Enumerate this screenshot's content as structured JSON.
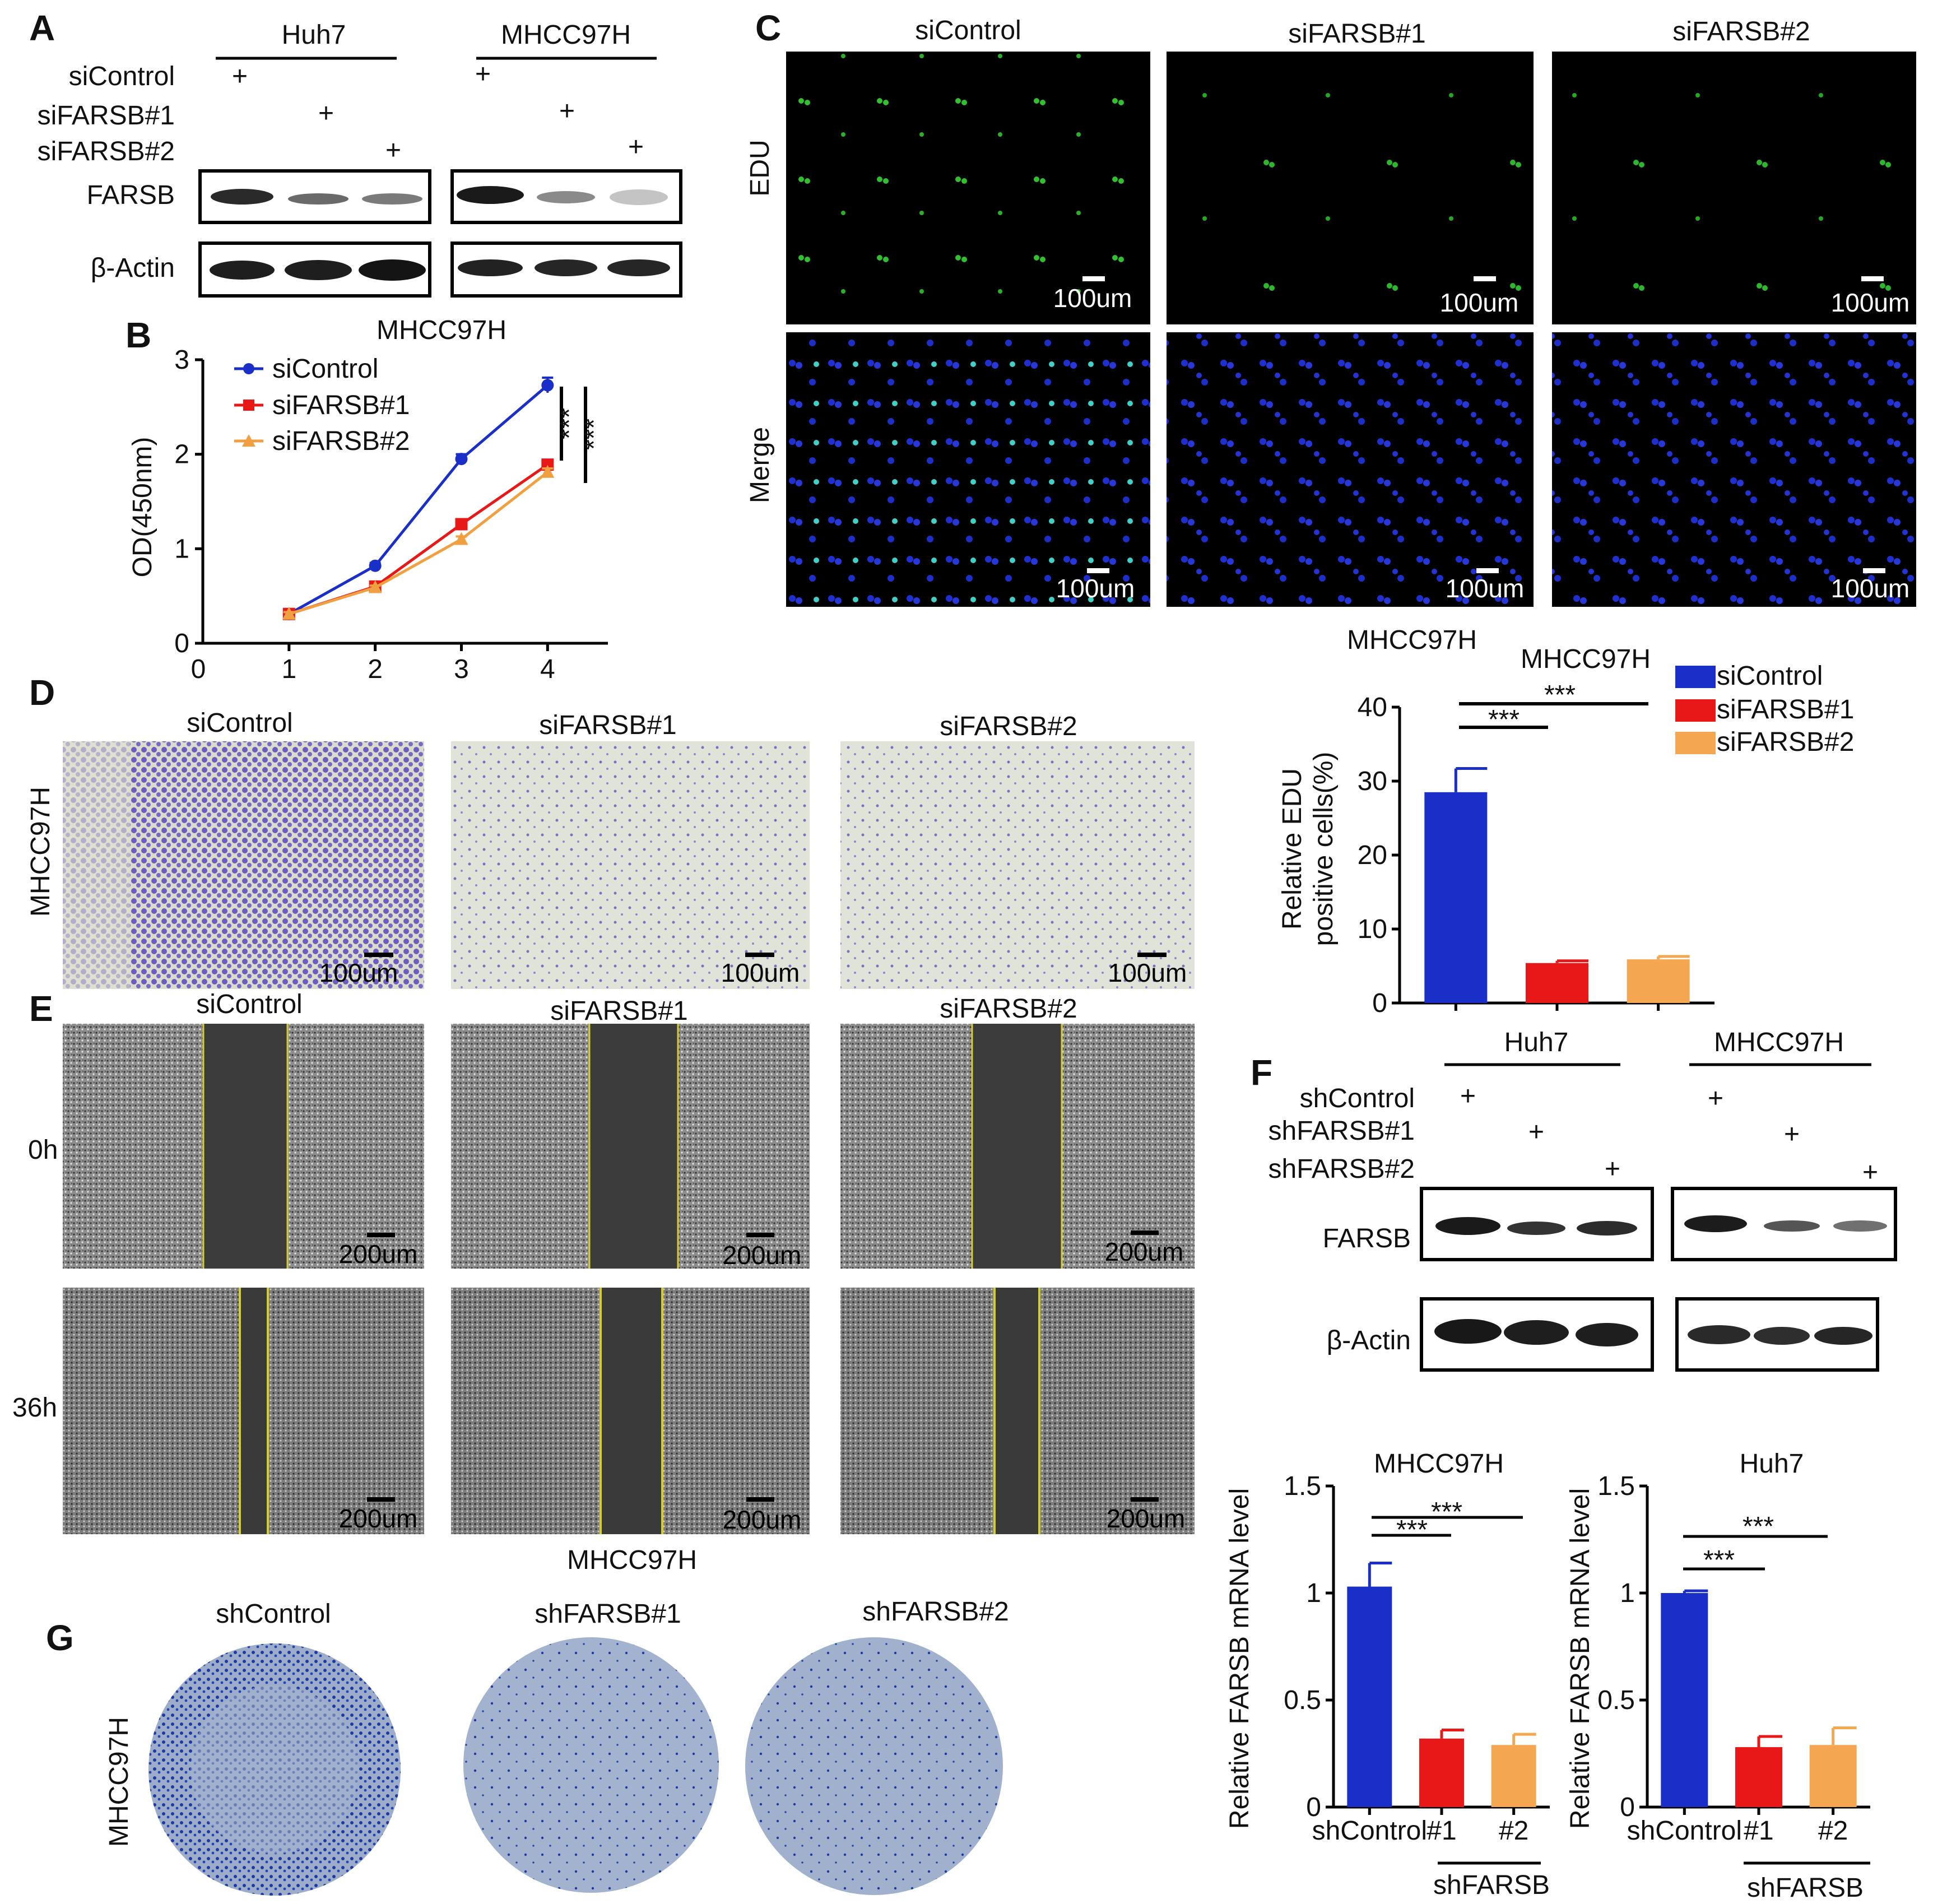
{
  "panel_letters": {
    "A": "A",
    "B": "B",
    "C": "C",
    "D": "D",
    "E": "E",
    "F": "F",
    "G": "G"
  },
  "panelA": {
    "cell_lines": [
      "Huh7",
      "MHCC97H"
    ],
    "row_labels": [
      "siControl",
      "siFARSB#1",
      "siFARSB#2"
    ],
    "plus": "+",
    "blot_labels": [
      "FARSB",
      "β-Actin"
    ]
  },
  "panelB": {
    "title": "MHCC97H",
    "stars": "***",
    "chart_data": {
      "type": "line",
      "title": "MHCC97H",
      "ylabel": "OD(450nm)",
      "x": [
        1,
        2,
        3,
        4
      ],
      "xticks": [
        "0",
        "1",
        "2",
        "3",
        "4"
      ],
      "yticks": [
        "0",
        "1",
        "2",
        "3"
      ],
      "ylim": [
        0,
        3
      ],
      "xlim": [
        0,
        4.7
      ],
      "legend": "top-left",
      "series": [
        {
          "name": "siControl",
          "values": [
            0.31,
            0.82,
            1.95,
            2.73
          ],
          "errors": [
            0.02,
            0.03,
            0.05,
            0.08
          ],
          "color": "#1a2fc8",
          "marker": "circle"
        },
        {
          "name": "siFARSB#1",
          "values": [
            0.31,
            0.6,
            1.26,
            1.89
          ],
          "errors": [
            0.02,
            0.02,
            0.04,
            0.04
          ],
          "color": "#e81818",
          "marker": "square"
        },
        {
          "name": "siFARSB#2",
          "values": [
            0.31,
            0.59,
            1.1,
            1.81
          ],
          "errors": [
            0.02,
            0.02,
            0.03,
            0.04
          ],
          "color": "#f0a040",
          "marker": "triangle"
        }
      ]
    }
  },
  "panelC": {
    "columns": [
      "siControl",
      "siFARSB#1",
      "siFARSB#2"
    ],
    "rows": [
      "EDU",
      "Merge"
    ],
    "scale": "100um"
  },
  "panelC_bar": {
    "header": "MHCC97H",
    "stars": "***",
    "chart_data": {
      "type": "bar",
      "title": "MHCC97H",
      "ylabel": "Relative EDU positive cells(%)",
      "ylabel_lines": [
        "Relative EDU",
        "positive cells(%)"
      ],
      "categories": [
        "siControl",
        "siFARSB#1",
        "siFARSB#2"
      ],
      "values": [
        28.5,
        5.4,
        5.9
      ],
      "errors": [
        3.2,
        0.3,
        0.4
      ],
      "colors": [
        "#1a2fc8",
        "#e81818",
        "#f5a650"
      ],
      "yticks": [
        "0",
        "10",
        "20",
        "30",
        "40"
      ],
      "ylim": [
        0,
        40
      ],
      "legend": "top-right"
    }
  },
  "panelD": {
    "row_label": "MHCC97H",
    "columns": [
      "siControl",
      "siFARSB#1",
      "siFARSB#2"
    ],
    "scale": "100um"
  },
  "panelE": {
    "columns": [
      "siControl",
      "siFARSB#1",
      "siFARSB#2"
    ],
    "rows": [
      "0h",
      "36h"
    ],
    "scale": "200um",
    "footer": "MHCC97H"
  },
  "panelF": {
    "cell_lines": [
      "Huh7",
      "MHCC97H"
    ],
    "row_labels": [
      "shControl",
      "shFARSB#1",
      "shFARSB#2"
    ],
    "plus": "+",
    "blot_labels": [
      "FARSB",
      "β-Actin"
    ]
  },
  "panelF_bars": {
    "stars": "***",
    "group_label": "shFARSB",
    "chart_data": [
      {
        "type": "bar",
        "title": "MHCC97H",
        "ylabel": "Relative FARSB mRNA level",
        "categories": [
          "shControl",
          "#1",
          "#2"
        ],
        "values": [
          1.03,
          0.32,
          0.29
        ],
        "errors": [
          0.11,
          0.04,
          0.05
        ],
        "colors": [
          "#1a2fc8",
          "#e81818",
          "#f5a650"
        ],
        "yticks": [
          "0",
          "0.5",
          "1",
          "1.5"
        ],
        "ylim": [
          0,
          1.5
        ]
      },
      {
        "type": "bar",
        "title": "Huh7",
        "ylabel": "Relative FARSB mRNA level",
        "categories": [
          "shControl",
          "#1",
          "#2"
        ],
        "values": [
          1.0,
          0.28,
          0.29
        ],
        "errors": [
          0.01,
          0.05,
          0.08
        ],
        "colors": [
          "#1a2fc8",
          "#e81818",
          "#f5a650"
        ],
        "yticks": [
          "0",
          "0.5",
          "1",
          "1.5"
        ],
        "ylim": [
          0,
          1.5
        ]
      }
    ]
  },
  "panelG": {
    "row_label": "MHCC97H",
    "columns": [
      "shControl",
      "shFARSB#1",
      "shFARSB#2"
    ]
  }
}
